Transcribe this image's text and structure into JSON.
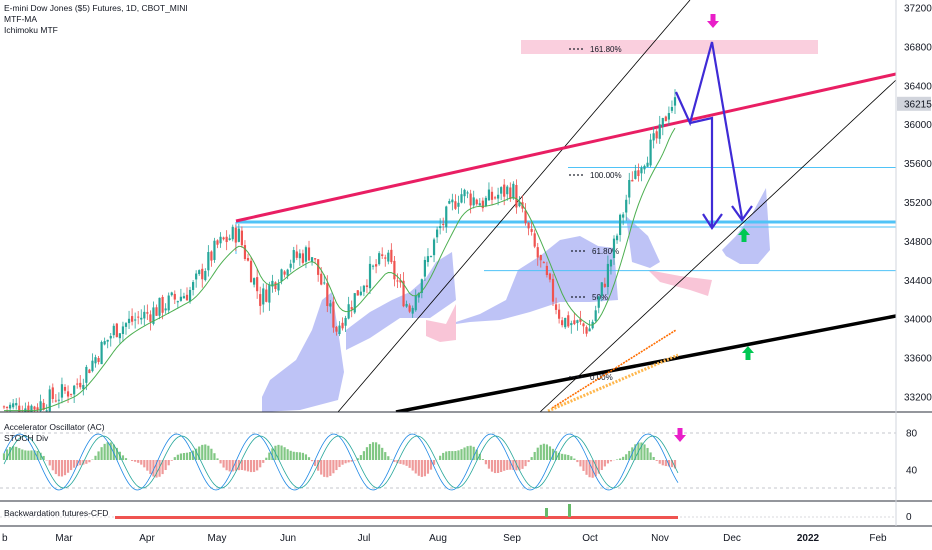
{
  "legend": {
    "symbol_title": "E-mini Dow Jones ($5) Futures, 1D, CBOT_MINI",
    "indicator_1": "MTF-MA",
    "indicator_2": "Ichimoku MTF"
  },
  "panes": {
    "oscillator_title": "Accelerator Oscillator (AC)",
    "oscillator_sub": "STOCH Div",
    "bottom_title": "Backwardation futures-CFD"
  },
  "colors": {
    "bull": "#26a69a",
    "bear": "#ef5350",
    "trend_magenta": "#e91e63",
    "trend_black": "#000000",
    "level_blue": "#4fc3f7",
    "projection": "#3f2bd6",
    "cloud_blue": "#b3b8f5",
    "cloud_pink": "#f8bbd0",
    "up_arrow": "#00c853",
    "down_arrow": "#e91ec8",
    "last_price_bg": "#d1d4dc"
  },
  "chart_data": {
    "type": "line",
    "x_ticks": [
      "b",
      "Mar",
      "Apr",
      "May",
      "Jun",
      "Jul",
      "Aug",
      "Sep",
      "Oct",
      "Nov",
      "Dec",
      "2022",
      "Feb"
    ],
    "y_ticks": [
      33200,
      33600,
      34000,
      34400,
      34800,
      35200,
      35600,
      36000,
      36400,
      36800,
      37200
    ],
    "ylim": [
      33000,
      37300
    ],
    "last_price": 36215,
    "fib_labels": [
      "161.80%",
      "100.00%",
      "61.80%",
      "50%",
      "0.00%"
    ],
    "osc_y_ticks": [
      80,
      40
    ],
    "bottom_y_ticks": [
      0
    ],
    "price_path": [
      {
        "t": "Feb-20",
        "v": 33100
      },
      {
        "t": "Mar-05",
        "v": 33300
      },
      {
        "t": "Mar-20",
        "v": 33900
      },
      {
        "t": "Apr-05",
        "v": 34100
      },
      {
        "t": "Apr-20",
        "v": 34300
      },
      {
        "t": "May-01",
        "v": 34750
      },
      {
        "t": "May-10",
        "v": 34900
      },
      {
        "t": "May-20",
        "v": 34200
      },
      {
        "t": "Jun-01",
        "v": 34600
      },
      {
        "t": "Jun-10",
        "v": 34700
      },
      {
        "t": "Jun-20",
        "v": 33900
      },
      {
        "t": "Jul-01",
        "v": 34400
      },
      {
        "t": "Jul-10",
        "v": 34650
      },
      {
        "t": "Jul-20",
        "v": 34100
      },
      {
        "t": "Aug-01",
        "v": 34900
      },
      {
        "t": "Aug-10",
        "v": 35300
      },
      {
        "t": "Aug-20",
        "v": 35200
      },
      {
        "t": "Sep-01",
        "v": 35350
      },
      {
        "t": "Sep-10",
        "v": 34700
      },
      {
        "t": "Sep-20",
        "v": 34000
      },
      {
        "t": "Oct-01",
        "v": 33900
      },
      {
        "t": "Oct-10",
        "v": 34600
      },
      {
        "t": "Oct-20",
        "v": 35500
      },
      {
        "t": "Nov-01",
        "v": 35900
      },
      {
        "t": "Nov-05",
        "v": 36215
      }
    ]
  }
}
